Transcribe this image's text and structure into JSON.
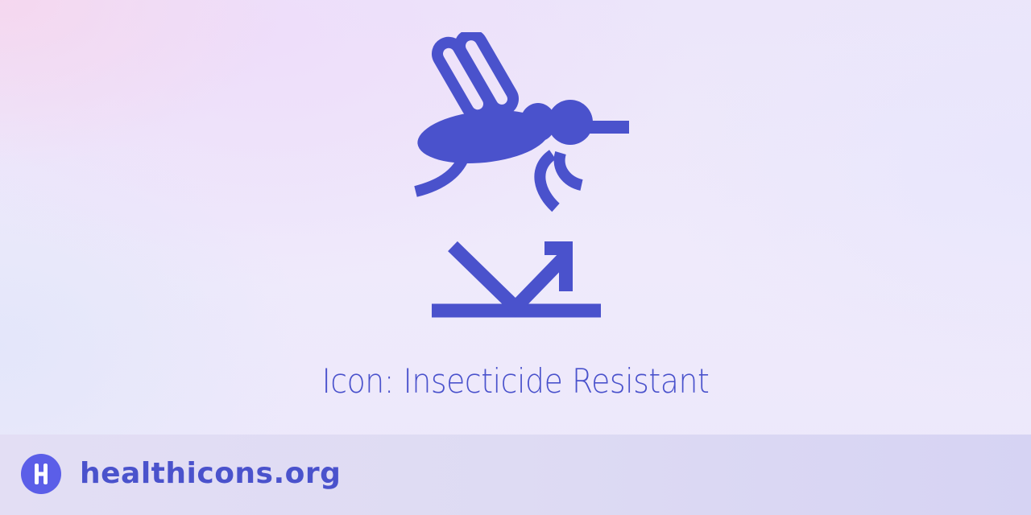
{
  "icon": {
    "name": "insecticide-resistant",
    "color": "#4a52cc"
  },
  "title": "Icon: Insecticide Resistant",
  "footer": {
    "logo_icon": "healthicons-logo-icon",
    "site_name": "healthicons.org"
  },
  "colors": {
    "accent": "#4a52cc",
    "logo_background": "#5b5ee8",
    "footer_background": "#dedbf3"
  }
}
